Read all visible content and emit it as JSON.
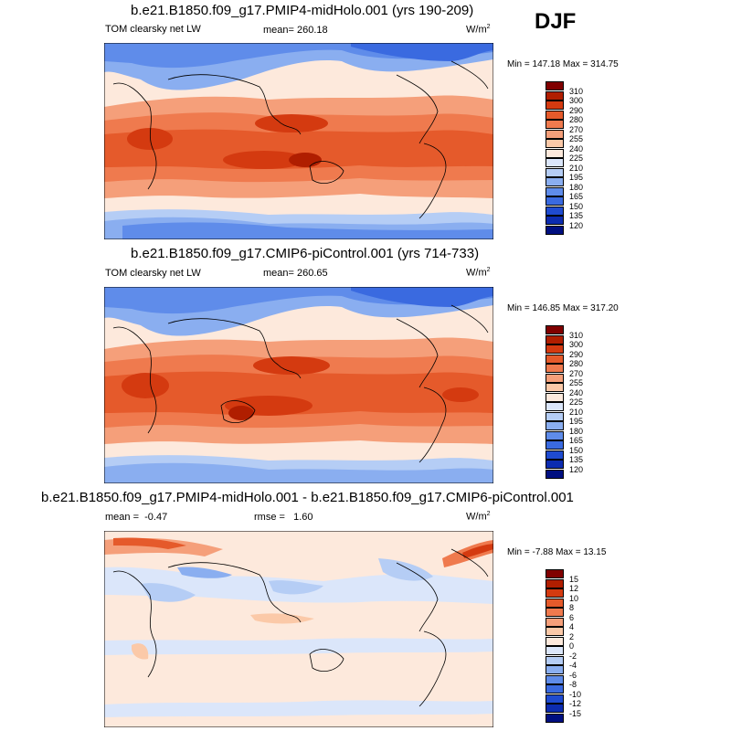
{
  "season": "DJF",
  "panels": [
    {
      "title": "b.e21.B1850.f09_g17.PMIP4-midHolo.001 (yrs 190-209)",
      "variable": "TOM clearsky net LW",
      "mean_label": "mean=",
      "mean": "260.18",
      "units": "W/m",
      "units_exp": "2",
      "minmax": "Min = 147.18 Max = 314.75",
      "colorbar_labels": [
        "310",
        "300",
        "290",
        "280",
        "270",
        "255",
        "240",
        "225",
        "210",
        "195",
        "180",
        "165",
        "150",
        "135",
        "120"
      ],
      "colorbar_colors": [
        "#800000",
        "#b01e00",
        "#d43a10",
        "#e55a2b",
        "#ef7a4e",
        "#f59f7a",
        "#fbc9a8",
        "#fde9dc",
        "#dbe6fa",
        "#b5cdf5",
        "#8aaef0",
        "#5f8cea",
        "#3a6ae0",
        "#1f4bd0",
        "#0c2cb0",
        "#000f80"
      ]
    },
    {
      "title": "b.e21.B1850.f09_g17.CMIP6-piControl.001 (yrs 714-733)",
      "variable": "TOM clearsky net LW",
      "mean_label": "mean=",
      "mean": "260.65",
      "units": "W/m",
      "units_exp": "2",
      "minmax": "Min = 146.85 Max = 317.20",
      "colorbar_labels": [
        "310",
        "300",
        "290",
        "280",
        "270",
        "255",
        "240",
        "225",
        "210",
        "195",
        "180",
        "165",
        "150",
        "135",
        "120"
      ],
      "colorbar_colors": [
        "#800000",
        "#b01e00",
        "#d43a10",
        "#e55a2b",
        "#ef7a4e",
        "#f59f7a",
        "#fbc9a8",
        "#fde9dc",
        "#dbe6fa",
        "#b5cdf5",
        "#8aaef0",
        "#5f8cea",
        "#3a6ae0",
        "#1f4bd0",
        "#0c2cb0",
        "#000f80"
      ]
    },
    {
      "title": "b.e21.B1850.f09_g17.PMIP4-midHolo.001 - b.e21.B1850.f09_g17.CMIP6-piControl.001",
      "mean_label": "mean =",
      "mean": "-0.47",
      "rmse_label": "rmse =",
      "rmse": "1.60",
      "units": "W/m",
      "units_exp": "2",
      "minmax": "Min =  -7.88 Max =  13.15",
      "colorbar_labels": [
        "15",
        "12",
        "10",
        "8",
        "6",
        "4",
        "2",
        "0",
        "-2",
        "-4",
        "-6",
        "-8",
        "-10",
        "-12",
        "-15"
      ],
      "colorbar_colors": [
        "#800000",
        "#b01e00",
        "#d43a10",
        "#e55a2b",
        "#ef7a4e",
        "#f59f7a",
        "#fbc9a8",
        "#fde9dc",
        "#dbe6fa",
        "#b5cdf5",
        "#8aaef0",
        "#5f8cea",
        "#3a6ae0",
        "#1f4bd0",
        "#0c2cb0",
        "#000f80"
      ]
    }
  ]
}
